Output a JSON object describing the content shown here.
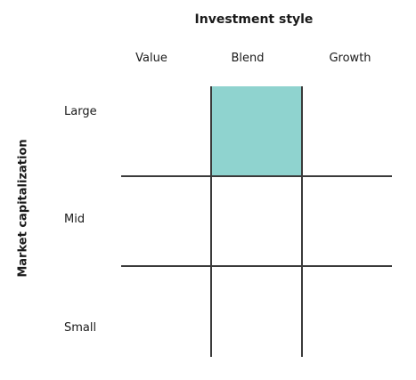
{
  "title": "Investment style",
  "y_axis_title": "Market capitalization",
  "columns": [
    "Value",
    "Blend",
    "Growth"
  ],
  "rows": [
    "Large",
    "Mid",
    "Small"
  ],
  "highlighted": {
    "row": "Large",
    "column": "Blend"
  },
  "colors": {
    "highlight": "#8fd3cf",
    "grid": "#3a3a3a",
    "text": "#1a1a1a"
  }
}
